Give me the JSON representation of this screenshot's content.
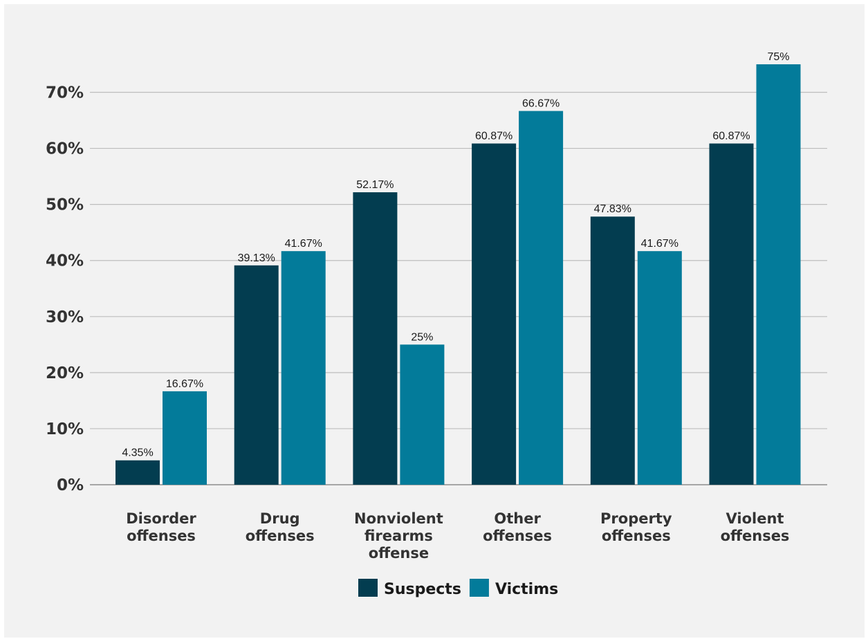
{
  "chart_data": {
    "type": "bar",
    "categories": [
      [
        "Disorder",
        "offenses"
      ],
      [
        "Drug",
        "offenses"
      ],
      [
        "Nonviolent",
        "firearms",
        "offense"
      ],
      [
        "Other",
        "offenses"
      ],
      [
        "Property",
        "offenses"
      ],
      [
        "Violent",
        "offenses"
      ]
    ],
    "series": [
      {
        "name": "Suspects",
        "color": "#033d50",
        "values": [
          4.35,
          39.13,
          52.17,
          60.87,
          47.83,
          60.87
        ],
        "labels": [
          "4.35%",
          "39.13%",
          "52.17%",
          "60.87%",
          "47.83%",
          "60.87%"
        ]
      },
      {
        "name": "Victims",
        "color": "#037b9a",
        "values": [
          16.67,
          41.67,
          25,
          66.67,
          41.67,
          75
        ],
        "labels": [
          "16.67%",
          "41.67%",
          "25%",
          "66.67%",
          "41.67%",
          "75%"
        ]
      }
    ],
    "yticks": [
      0,
      10,
      20,
      30,
      40,
      50,
      60,
      70
    ],
    "ytick_labels": [
      "0%",
      "10%",
      "20%",
      "30%",
      "40%",
      "50%",
      "60%",
      "70%"
    ],
    "ylim": [
      0,
      75
    ],
    "grid": true,
    "legend_position": "bottom-center",
    "title": "",
    "xlabel": "",
    "ylabel": ""
  }
}
